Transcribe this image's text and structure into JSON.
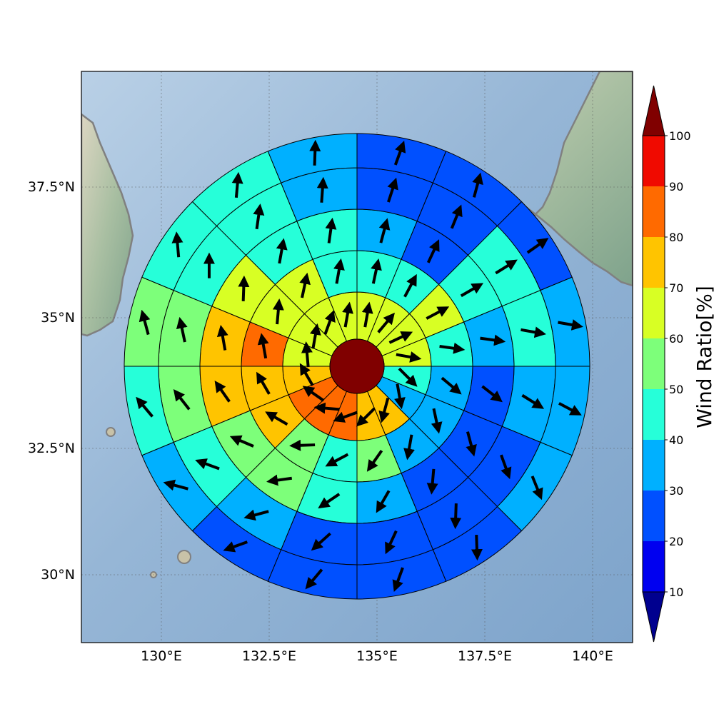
{
  "map": {
    "lon_ticks": [
      "130°E",
      "132.5°E",
      "135°E",
      "137.5°E",
      "140°E"
    ],
    "lat_ticks": [
      "37.5°N",
      "35°N",
      "32.5°N",
      "30°N"
    ],
    "gridlines": true,
    "basemap": "shaded-relief"
  },
  "colorbar": {
    "label": "Wind Ratio[%]",
    "ticks": [
      "10",
      "20",
      "30",
      "40",
      "50",
      "60",
      "70",
      "80",
      "90",
      "100"
    ],
    "colors": [
      "#00008f",
      "#0000f0",
      "#0050ff",
      "#00b0ff",
      "#26ffd9",
      "#7dff7a",
      "#d8ff24",
      "#ffc400",
      "#ff6a00",
      "#f00a00",
      "#800000"
    ]
  },
  "chart_data": {
    "type": "heatmap",
    "description_kind": "polar wind-ratio diagram",
    "center": {
      "lon": 134.6,
      "lat": 34.2
    },
    "rings": 5,
    "sectors_per_ring": 16,
    "center_value": 100,
    "value_bins": [
      10,
      20,
      30,
      40,
      50,
      60,
      70,
      80,
      90,
      100
    ],
    "ring_values": [
      [
        64,
        65,
        66,
        62,
        45,
        38,
        74,
        76,
        84,
        86,
        88,
        78,
        66,
        62,
        64,
        63
      ],
      [
        45,
        44,
        62,
        42,
        38,
        32,
        38,
        55,
        48,
        56,
        78,
        75,
        84,
        66,
        62,
        45
      ],
      [
        34,
        25,
        45,
        32,
        28,
        26,
        28,
        35,
        45,
        55,
        58,
        72,
        74,
        62,
        44,
        45
      ],
      [
        22,
        25,
        42,
        43,
        38,
        22,
        22,
        24,
        25,
        38,
        44,
        55,
        52,
        46,
        45,
        34
      ],
      [
        28,
        22,
        22,
        32,
        32,
        32,
        22,
        22,
        25,
        28,
        35,
        45,
        53,
        45,
        42,
        34
      ]
    ],
    "arrow_angles_deg": [
      [
        10,
        40,
        65,
        100,
        135,
        170,
        195,
        225,
        250,
        275,
        305,
        330,
        355,
        10,
        20,
        10
      ],
      [
        12,
        28,
        62,
        98,
        130,
        168,
        190,
        215,
        242,
        268,
        300,
        330,
        350,
        5,
        12,
        10
      ],
      [
        15,
        25,
        60,
        98,
        128,
        165,
        185,
        210,
        236,
        262,
        293,
        325,
        350,
        2,
        10,
        8
      ],
      [
        18,
        22,
        58,
        100,
        122,
        160,
        182,
        205,
        228,
        255,
        290,
        322,
        348,
        0,
        8,
        4
      ],
      [
        20,
        15,
        55,
        100,
        118,
        158,
        178,
        200,
        220,
        250,
        285,
        320,
        345,
        355,
        5,
        2
      ]
    ]
  }
}
